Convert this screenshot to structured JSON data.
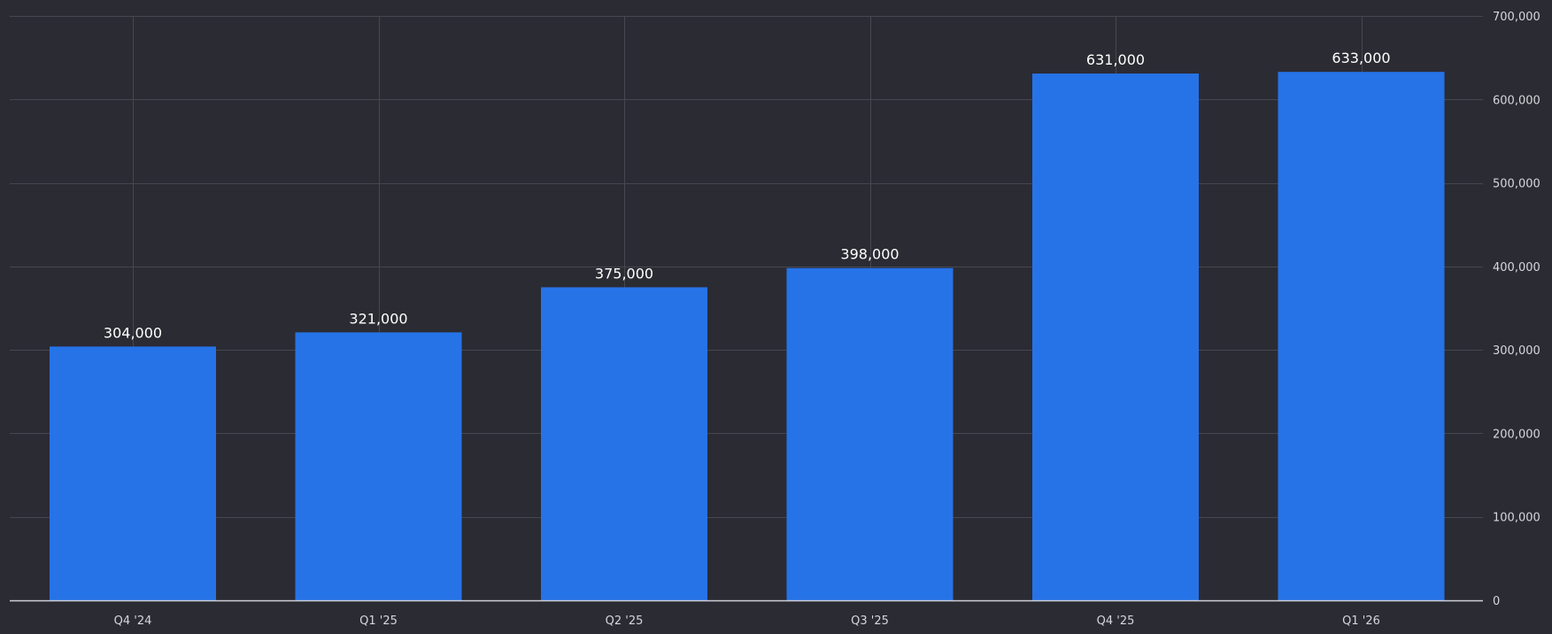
{
  "chart_data": {
    "type": "bar",
    "categories": [
      "Q4 '24",
      "Q1 '25",
      "Q2 '25",
      "Q3 '25",
      "Q4 '25",
      "Q1 '26"
    ],
    "values": [
      304000,
      321000,
      375000,
      398000,
      631000,
      633000
    ],
    "data_labels": [
      "304,000",
      "321,000",
      "375,000",
      "398,000",
      "631,000",
      "633,000"
    ],
    "y_ticks": [
      0,
      100000,
      200000,
      300000,
      400000,
      500000,
      600000,
      700000
    ],
    "y_tick_labels": [
      "0",
      "100,000",
      "200,000",
      "300,000",
      "400,000",
      "500,000",
      "600,000",
      "700,000"
    ],
    "ylim": [
      0,
      700000
    ],
    "y_axis_side": "right",
    "grid": true,
    "bar_color": "#2673e8",
    "background_color": "#2b2b33"
  }
}
